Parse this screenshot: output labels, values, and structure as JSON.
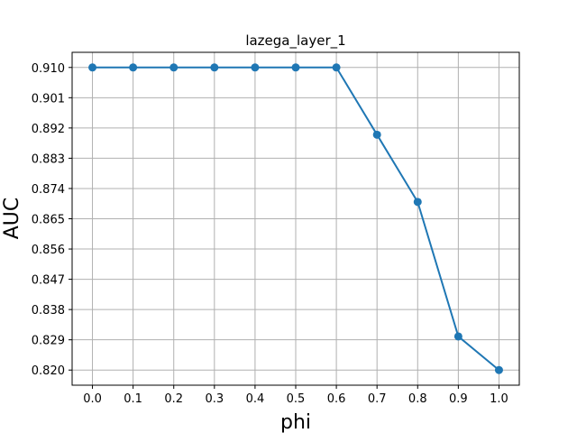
{
  "chart_data": {
    "type": "line",
    "title": "lazega_layer_1",
    "xlabel": "phi",
    "ylabel": "AUC",
    "x": [
      0.0,
      0.1,
      0.2,
      0.3,
      0.4,
      0.5,
      0.6,
      0.7,
      0.8,
      0.9,
      1.0
    ],
    "series": [
      {
        "values": [
          0.91,
          0.91,
          0.91,
          0.91,
          0.91,
          0.91,
          0.91,
          0.89,
          0.87,
          0.83,
          0.82
        ],
        "color": "#1f77b4",
        "marker": "circle"
      }
    ],
    "xticks": [
      "0.0",
      "0.1",
      "0.2",
      "0.3",
      "0.4",
      "0.5",
      "0.6",
      "0.7",
      "0.8",
      "0.9",
      "1.0"
    ],
    "yticks": [
      "0.820",
      "0.829",
      "0.838",
      "0.847",
      "0.856",
      "0.865",
      "0.874",
      "0.883",
      "0.892",
      "0.901",
      "0.910"
    ],
    "xlim": [
      -0.05,
      1.05
    ],
    "ylim": [
      0.8155,
      0.9145
    ],
    "grid": true
  }
}
